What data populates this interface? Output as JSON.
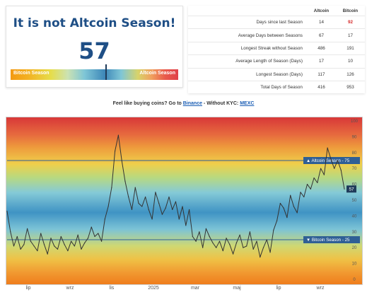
{
  "index": {
    "title": "It is not Altcoin Season!",
    "value": "57",
    "value_number": 57,
    "bar_left_label": "Bitcoin Season",
    "bar_right_label": "Altcoin Season"
  },
  "stats_table": {
    "headers": [
      "",
      "Altcoin",
      "Bitcoin"
    ],
    "rows": [
      {
        "label": "Days since last Season",
        "altcoin": "14",
        "bitcoin": "92"
      },
      {
        "label": "Average Days between Seasons",
        "altcoin": "67",
        "bitcoin": "17"
      },
      {
        "label": "Longest Streak without Season",
        "altcoin": "486",
        "bitcoin": "191"
      },
      {
        "label": "Average Length of Season (Days)",
        "altcoin": "17",
        "bitcoin": "10"
      },
      {
        "label": "Longest Season (Days)",
        "altcoin": "117",
        "bitcoin": "126"
      },
      {
        "label": "Total Days of Season",
        "altcoin": "416",
        "bitcoin": "953"
      }
    ],
    "highlight_color": "#d62b2b"
  },
  "promo": {
    "text_before": "Feel like buying coins? Go to ",
    "link1": "Binance",
    "text_middle": " - Without KYC: ",
    "link2": "MEXC"
  },
  "chart_data": {
    "type": "line",
    "ylim": [
      0,
      100
    ],
    "yticks": [
      "100",
      "90",
      "80",
      "70",
      "60",
      "50",
      "40",
      "30",
      "20",
      "10",
      "0"
    ],
    "xticks": [
      "lip",
      "wrz",
      "lis",
      "2025",
      "mar",
      "maj",
      "lip",
      "wrz"
    ],
    "x": [
      0,
      1,
      2,
      3,
      4,
      5,
      6,
      7,
      8,
      9,
      10,
      11,
      12,
      13,
      14,
      15,
      16,
      17,
      18,
      19,
      20,
      21,
      22,
      23,
      24,
      25,
      26,
      27,
      28,
      29,
      30,
      31,
      32,
      33,
      34,
      35,
      36,
      37,
      38,
      39,
      40,
      41,
      42,
      43,
      44,
      45,
      46,
      47,
      48,
      49,
      50,
      51,
      52,
      53,
      54,
      55,
      56,
      57,
      58,
      59,
      60,
      61,
      62,
      63,
      64,
      65,
      66,
      67,
      68,
      69,
      70,
      71,
      72,
      73,
      74,
      75,
      76,
      77,
      78,
      79,
      80,
      81,
      82,
      83,
      84,
      85,
      86,
      87,
      88,
      89,
      90,
      91,
      92,
      93,
      94,
      95,
      96,
      97,
      98,
      99,
      100
    ],
    "series": [
      {
        "values": [
          43,
          30,
          21,
          27,
          19,
          22,
          32,
          24,
          21,
          18,
          29,
          22,
          16,
          26,
          21,
          19,
          27,
          22,
          18,
          24,
          21,
          28,
          19,
          23,
          26,
          33,
          27,
          29,
          24,
          38,
          46,
          58,
          81,
          91,
          75,
          62,
          52,
          44,
          58,
          48,
          46,
          52,
          44,
          38,
          55,
          48,
          41,
          45,
          52,
          44,
          49,
          38,
          46,
          34,
          44,
          27,
          24,
          30,
          20,
          32,
          27,
          23,
          20,
          24,
          18,
          26,
          22,
          16,
          23,
          28,
          20,
          21,
          30,
          19,
          24,
          14,
          20,
          25,
          17,
          31,
          37,
          48,
          45,
          39,
          53,
          46,
          42,
          55,
          52,
          60,
          57,
          64,
          61,
          70,
          66,
          83,
          76,
          70,
          75,
          69,
          57
        ]
      }
    ],
    "annotations": [
      {
        "label": "Altcoin Season",
        "value": 75
      },
      {
        "label": "Bitcoin Season",
        "value": 25
      }
    ],
    "current_value_label": "57",
    "current_value": 57,
    "line_color": "#333333",
    "ref_line_color": "#2f5f95"
  }
}
